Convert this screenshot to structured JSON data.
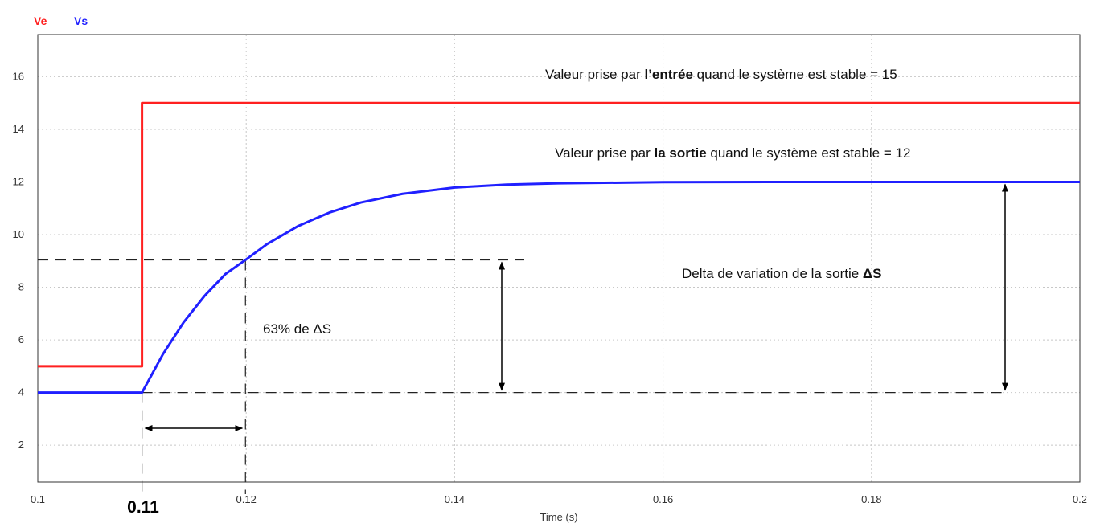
{
  "chart_data": {
    "type": "line",
    "xlabel": "Time (s)",
    "ylabel": "",
    "xlim": [
      0.1,
      0.2
    ],
    "ylim": [
      0.6,
      17.6
    ],
    "x_ticks": [
      "0.1",
      "0.12",
      "0.14",
      "0.16",
      "0.18",
      "0.2"
    ],
    "y_ticks": [
      "2",
      "4",
      "6",
      "8",
      "10",
      "12",
      "14",
      "16"
    ],
    "grid": true,
    "legend_position": "top-left",
    "series": [
      {
        "name": "Ve",
        "color": "#ff2020",
        "x": [
          0.1,
          0.11,
          0.11,
          0.2
        ],
        "y": [
          5,
          5,
          15,
          15
        ]
      },
      {
        "name": "Vs",
        "color": "#2020ff",
        "x": [
          0.1,
          0.11,
          0.112,
          0.114,
          0.116,
          0.118,
          0.12,
          0.122,
          0.125,
          0.128,
          0.131,
          0.135,
          0.14,
          0.145,
          0.15,
          0.16,
          0.17,
          0.18,
          0.19,
          0.2
        ],
        "y": [
          4,
          4,
          5.45,
          6.67,
          7.67,
          8.5,
          9.06,
          9.64,
          10.33,
          10.84,
          11.22,
          11.55,
          11.79,
          11.9,
          11.95,
          11.99,
          12,
          12,
          12,
          12
        ]
      }
    ],
    "highlighted_tick": "0.11",
    "annotations": {
      "input_prefix": "Valeur prise par ",
      "input_bold": "l’entrée",
      "input_suffix": " quand le système est stable = 15",
      "output_prefix": "Valeur prise par ",
      "output_bold": "la sortie",
      "output_suffix": "  quand le système est stable = 12",
      "delta_prefix": "Delta de variation de la sortie ",
      "delta_bold": "ΔS",
      "pct_label": "63% de ΔS"
    }
  }
}
